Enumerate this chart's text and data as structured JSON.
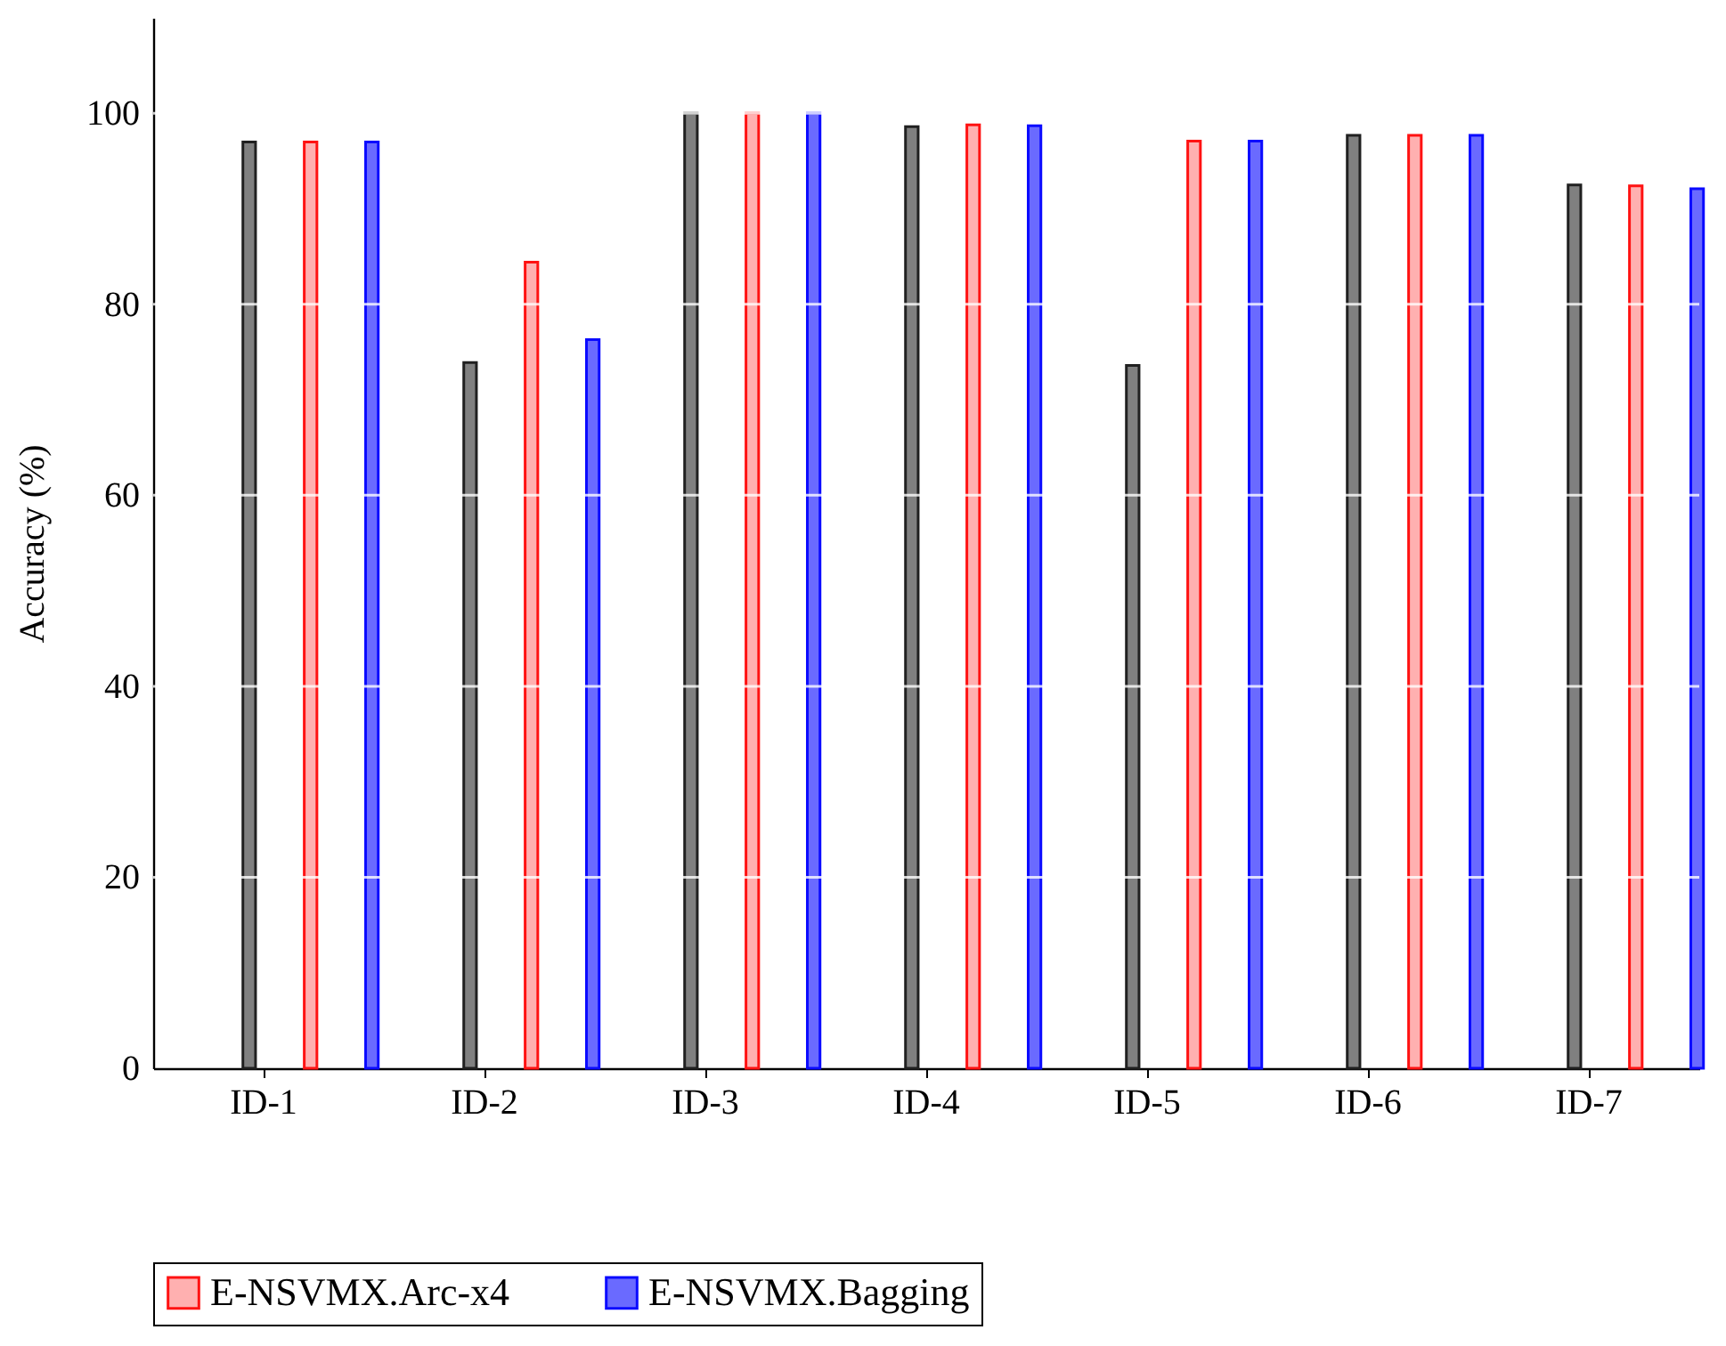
{
  "chart_data": {
    "type": "bar",
    "ylabel": "Accuracy (%)",
    "categories": [
      "ID-1",
      "ID-2",
      "ID-3",
      "ID-4",
      "ID-5",
      "ID-6",
      "ID-7"
    ],
    "series": [
      {
        "color": "#808080",
        "values": [
          97.0,
          73.9,
          100.0,
          98.6,
          73.6,
          97.7,
          92.5
        ]
      },
      {
        "name": "E-NSVMX.Arc-x4",
        "color": "#ffb0b0",
        "values": [
          97.0,
          84.4,
          100.0,
          98.8,
          97.1,
          97.7,
          92.4
        ]
      },
      {
        "name": "E-NSVMX.Bagging",
        "color": "#6a6aff",
        "values": [
          97.0,
          76.3,
          100.0,
          98.7,
          97.1,
          97.7,
          92.1
        ]
      }
    ],
    "ylim": [
      0,
      110
    ],
    "yticks": [
      0,
      20,
      40,
      60,
      80,
      100
    ],
    "grid": "y",
    "legend": "bottom"
  }
}
